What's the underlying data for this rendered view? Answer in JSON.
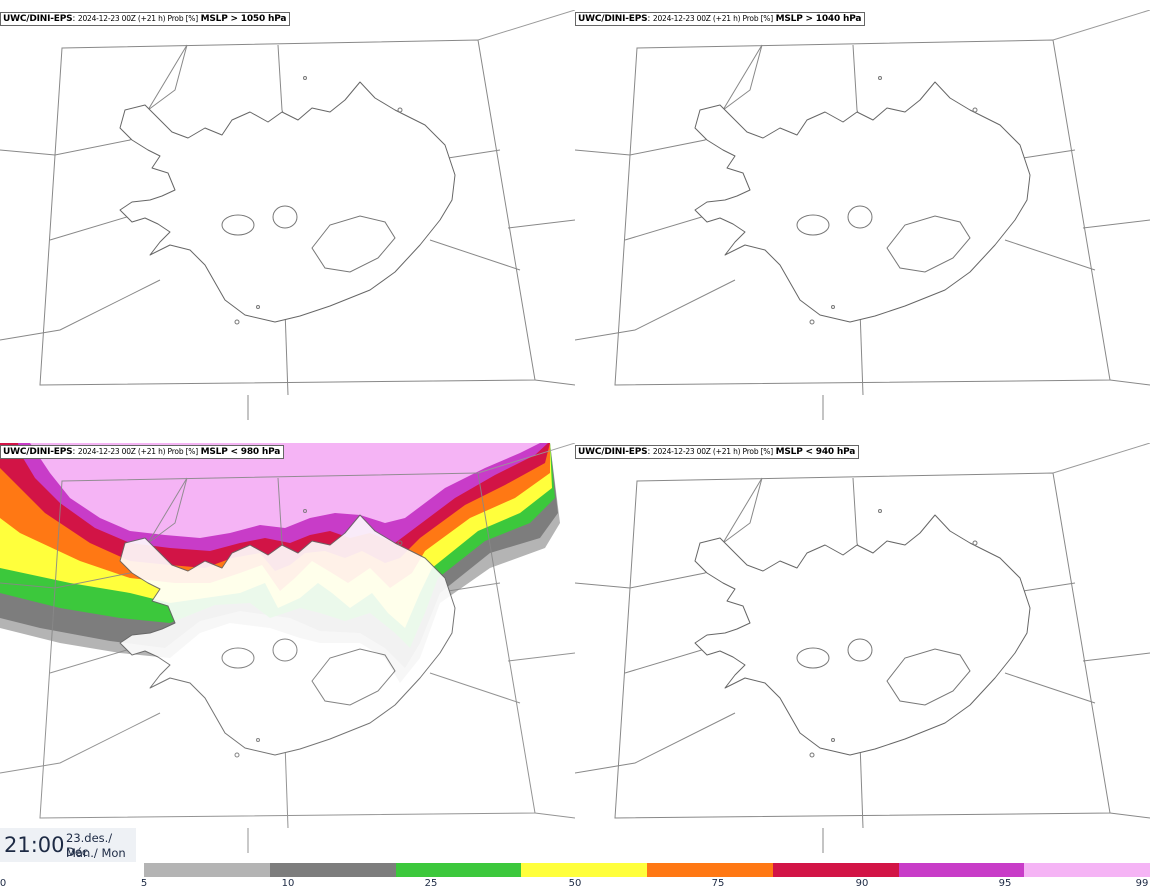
{
  "panels": [
    {
      "model": "UWC/DINI-EPS",
      "run": "2024-12-23 00Z (+21 h) Prob [%]",
      "field": "MSLP > 1050 hPa"
    },
    {
      "model": "UWC/DINI-EPS",
      "run": "2024-12-23 00Z (+21 h) Prob [%]",
      "field": "MSLP > 1040 hPa"
    },
    {
      "model": "UWC/DINI-EPS",
      "run": "2024-12-23 00Z (+21 h) Prob [%]",
      "field": "MSLP < 980 hPa"
    },
    {
      "model": "UWC/DINI-EPS",
      "run": "2024-12-23 00Z (+21 h) Prob [%]",
      "field": "MSLP < 940 hPa"
    }
  ],
  "time": {
    "clock": "21:00",
    "date_line": "23.des./ Dec",
    "day_line": "Mán./ Mon"
  },
  "colorbar": {
    "ticks": [
      "0",
      "5",
      "10",
      "25",
      "50",
      "75",
      "90",
      "95",
      "99"
    ],
    "colors": [
      "#b4b4b4",
      "#7d7d7d",
      "#3cc83c",
      "#ffff3c",
      "#ff7814",
      "#d21446",
      "#c83cc8",
      "#f5b4f5"
    ]
  }
}
